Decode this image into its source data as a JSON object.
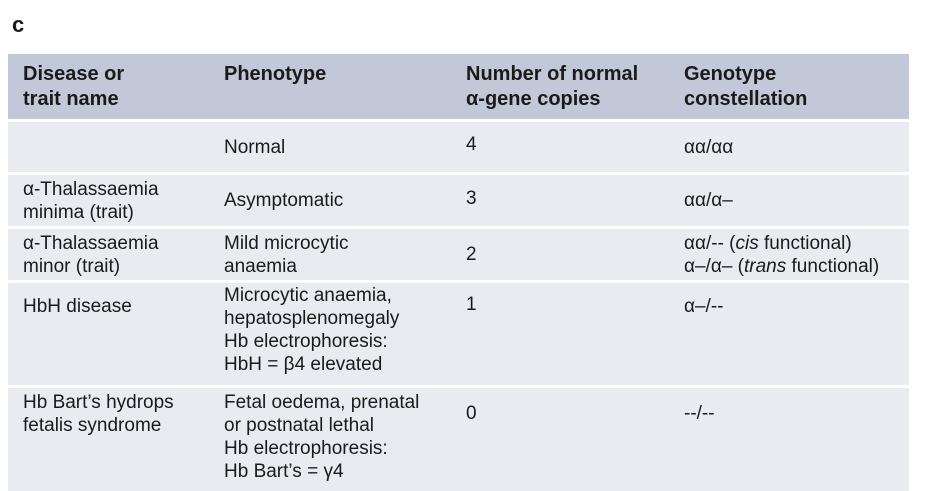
{
  "panel_label": "c",
  "headers": {
    "disease": [
      "Disease or",
      "trait name"
    ],
    "phenotype": [
      "Phenotype"
    ],
    "copies": [
      "Number of normal",
      "α-gene copies"
    ],
    "genotype": [
      "Genotype",
      "constellation"
    ]
  },
  "rows": [
    {
      "disease": [],
      "phenotype": [
        "Normal"
      ],
      "copies": "4",
      "genotype": [
        "αα/αα"
      ]
    },
    {
      "disease": [
        "α-Thalassaemia",
        "minima (trait)"
      ],
      "phenotype": [
        "Asymptomatic"
      ],
      "copies": "3",
      "genotype": [
        "αα/α–"
      ]
    },
    {
      "disease": [
        "α-Thalassaemia",
        "minor (trait)"
      ],
      "phenotype": [
        "Mild microcytic",
        "anaemia"
      ],
      "copies": "2",
      "genotype_rich": [
        {
          "pre": "αα/-- (",
          "em": "cis",
          "post": " functional)"
        },
        {
          "pre": "α–/α– (",
          "em": "trans",
          "post": " functional)"
        }
      ]
    },
    {
      "disease": [
        "HbH disease"
      ],
      "phenotype": [
        "Microcytic anaemia,",
        "hepatosplenomegaly",
        "Hb electrophoresis:",
        "HbH = β4 elevated"
      ],
      "copies": "1",
      "genotype": [
        "α–/--"
      ]
    },
    {
      "disease": [
        "Hb Bart’s hydrops",
        "fetalis syndrome"
      ],
      "phenotype": [
        "Fetal oedema, prenatal",
        "or postnatal lethal",
        "Hb electrophoresis:",
        "Hb Bart’s = γ4"
      ],
      "copies": "0",
      "genotype": [
        "--/--"
      ]
    }
  ]
}
